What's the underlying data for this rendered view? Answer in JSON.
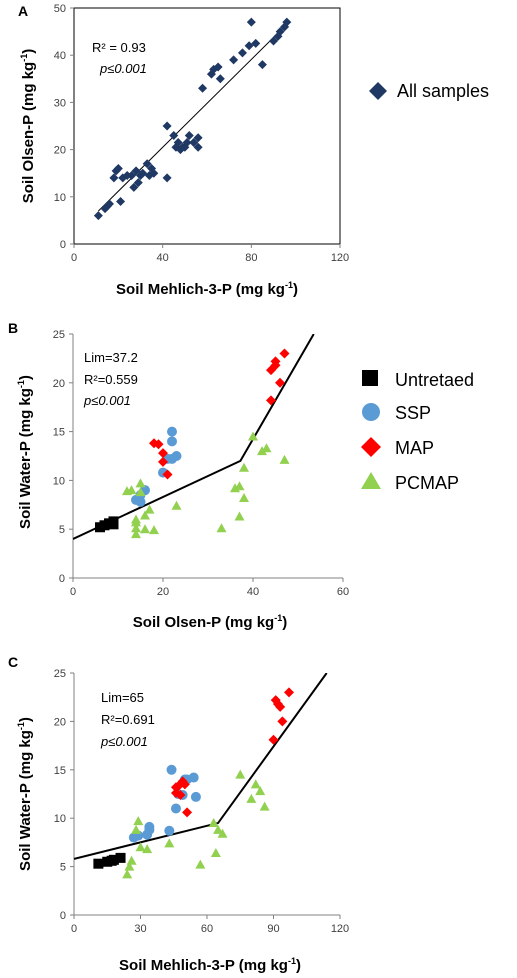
{
  "chart_data": [
    {
      "type": "scatter",
      "panel": "A",
      "xlabel": "Soil Mehlich-3-P (mg kg",
      "ylabel": "Soil Olsen-P (mg kg",
      "label_sup": "-1",
      "label_close": ")",
      "xlim": [
        0,
        120
      ],
      "ylim": [
        0,
        50
      ],
      "xticks": [
        0,
        40,
        80,
        120
      ],
      "yticks": [
        0,
        10,
        20,
        30,
        40,
        50
      ],
      "stat_r2": "R² = 0.93",
      "stat_p": "p≤0.001",
      "legend_position": "right",
      "color": "#1f3864",
      "series": [
        {
          "name": "All samples",
          "marker": "diamond",
          "points": [
            [
              11,
              6
            ],
            [
              14,
              7.5
            ],
            [
              15,
              8
            ],
            [
              16,
              8.5
            ],
            [
              18,
              14
            ],
            [
              19,
              15.5
            ],
            [
              20,
              16
            ],
            [
              21,
              9
            ],
            [
              22,
              14
            ],
            [
              24,
              14.5
            ],
            [
              26,
              14.5
            ],
            [
              27,
              12
            ],
            [
              28,
              15.5
            ],
            [
              29,
              13
            ],
            [
              30,
              14.5
            ],
            [
              31,
              15
            ],
            [
              33,
              17
            ],
            [
              34,
              14.5
            ],
            [
              35,
              16
            ],
            [
              36,
              15
            ],
            [
              42,
              14
            ],
            [
              42,
              25
            ],
            [
              45,
              23
            ],
            [
              46,
              20.5
            ],
            [
              47,
              21.5
            ],
            [
              48,
              20
            ],
            [
              49,
              20.5
            ],
            [
              50,
              20.5
            ],
            [
              51,
              21.5
            ],
            [
              52,
              23
            ],
            [
              54,
              21.5
            ],
            [
              56,
              20.5
            ],
            [
              56,
              22.5
            ],
            [
              58,
              33
            ],
            [
              62,
              36
            ],
            [
              63,
              37
            ],
            [
              65,
              37.5
            ],
            [
              66,
              35
            ],
            [
              72,
              39
            ],
            [
              76,
              40.5
            ],
            [
              79,
              42
            ],
            [
              80,
              47
            ],
            [
              82,
              42.5
            ],
            [
              85,
              38
            ],
            [
              90,
              43
            ],
            [
              92,
              44
            ],
            [
              93,
              45
            ],
            [
              95,
              46
            ],
            [
              96,
              47
            ]
          ]
        }
      ],
      "fit_line": [
        [
          11,
          7
        ],
        [
          97,
          47
        ]
      ]
    },
    {
      "type": "scatter",
      "panel": "B",
      "xlabel": "Soil Olsen-P (mg kg",
      "ylabel": "Soil Water-P (mg kg",
      "label_sup": "-1",
      "label_close": ")",
      "xlim": [
        0,
        60
      ],
      "ylim": [
        0,
        25
      ],
      "xticks": [
        0,
        20,
        40,
        60
      ],
      "yticks": [
        0,
        5,
        10,
        15,
        20,
        25
      ],
      "stat_lim": "Lim=37.2",
      "stat_r2": "R²=0.559",
      "stat_p": "p≤0.001",
      "legend_position": "right",
      "series": [
        {
          "name": "Untretaed",
          "marker": "square",
          "color": "#000000",
          "points": [
            [
              6,
              5.2
            ],
            [
              7,
              5.4
            ],
            [
              8,
              5.6
            ],
            [
              9,
              5.8
            ],
            [
              9,
              5.5
            ]
          ]
        },
        {
          "name": "SSP",
          "marker": "circle",
          "color": "#5b9bd5",
          "points": [
            [
              14,
              8
            ],
            [
              15,
              8.5
            ],
            [
              16,
              9
            ],
            [
              15,
              7.8
            ],
            [
              20,
              10.8
            ],
            [
              21,
              12.2
            ],
            [
              22,
              12.2
            ],
            [
              22,
              14
            ],
            [
              22,
              15
            ],
            [
              23,
              12.5
            ]
          ]
        },
        {
          "name": "MAP",
          "marker": "diamond",
          "color": "#ff0000",
          "points": [
            [
              18,
              13.8
            ],
            [
              19,
              13.7
            ],
            [
              20,
              12.8
            ],
            [
              20,
              11.9
            ],
            [
              21,
              10.6
            ],
            [
              44,
              18.2
            ],
            [
              44,
              21.3
            ],
            [
              45,
              21.8
            ],
            [
              45,
              22.2
            ],
            [
              46,
              20
            ],
            [
              47,
              23
            ]
          ]
        },
        {
          "name": "PCMAP",
          "marker": "triangle",
          "color": "#92d050",
          "points": [
            [
              12,
              8.9
            ],
            [
              13,
              9
            ],
            [
              14,
              4.5
            ],
            [
              14,
              5.1
            ],
            [
              14,
              5.7
            ],
            [
              14,
              6
            ],
            [
              15,
              8.8
            ],
            [
              15,
              9.7
            ],
            [
              16,
              5
            ],
            [
              16,
              6.4
            ],
            [
              17,
              7
            ],
            [
              18,
              4.9
            ],
            [
              23,
              7.4
            ],
            [
              33,
              5.1
            ],
            [
              36,
              9.2
            ],
            [
              37,
              9.4
            ],
            [
              37,
              6.3
            ],
            [
              38,
              8.2
            ],
            [
              38,
              11.3
            ],
            [
              40,
              14.5
            ],
            [
              42,
              13
            ],
            [
              43,
              13.3
            ],
            [
              47,
              12.1
            ]
          ]
        }
      ],
      "fit_line": [
        [
          0,
          4
        ],
        [
          37.2,
          12
        ],
        [
          53.5,
          25
        ]
      ]
    },
    {
      "type": "scatter",
      "panel": "C",
      "xlabel": "Soil Mehlich-3-P (mg kg",
      "ylabel": "Soil Water-P (mg kg",
      "label_sup": "-1",
      "label_close": ")",
      "xlim": [
        0,
        120
      ],
      "ylim": [
        0,
        25
      ],
      "xticks": [
        0,
        30,
        60,
        90,
        120
      ],
      "yticks": [
        0,
        5,
        10,
        15,
        20,
        25
      ],
      "stat_lim": "Lim=65",
      "stat_r2": "R²=0.691",
      "stat_p": "p≤0.001",
      "series": [
        {
          "name": "Untretaed",
          "marker": "square",
          "color": "#000000",
          "points": [
            [
              11,
              5.3
            ],
            [
              15,
              5.5
            ],
            [
              17,
              5.6
            ],
            [
              18,
              5.7
            ],
            [
              21,
              5.9
            ]
          ]
        },
        {
          "name": "SSP",
          "marker": "circle",
          "color": "#5b9bd5",
          "points": [
            [
              27,
              8
            ],
            [
              29,
              8.2
            ],
            [
              33,
              8.3
            ],
            [
              34,
              8.8
            ],
            [
              34,
              9.1
            ],
            [
              43,
              8.7
            ],
            [
              44,
              15
            ],
            [
              46,
              11
            ],
            [
              47,
              12.5
            ],
            [
              49,
              12.4
            ],
            [
              50,
              14
            ],
            [
              51,
              14
            ],
            [
              54,
              14.2
            ],
            [
              55,
              12.2
            ]
          ]
        },
        {
          "name": "MAP",
          "marker": "diamond",
          "color": "#ff0000",
          "points": [
            [
              46,
              13.2
            ],
            [
              46,
              12.6
            ],
            [
              47,
              13.3
            ],
            [
              48,
              12.4
            ],
            [
              49,
              13.8
            ],
            [
              50,
              13.5
            ],
            [
              51,
              10.6
            ],
            [
              90,
              18.1
            ],
            [
              91,
              22.2
            ],
            [
              92,
              21.8
            ],
            [
              93,
              21.5
            ],
            [
              94,
              20
            ],
            [
              97,
              23
            ]
          ]
        },
        {
          "name": "PCMAP",
          "marker": "triangle",
          "color": "#92d050",
          "points": [
            [
              24,
              4.2
            ],
            [
              25,
              5
            ],
            [
              26,
              5.6
            ],
            [
              28,
              8.8
            ],
            [
              29,
              9.7
            ],
            [
              30,
              7
            ],
            [
              33,
              6.8
            ],
            [
              43,
              7.4
            ],
            [
              57,
              5.2
            ],
            [
              63,
              9.5
            ],
            [
              64,
              6.4
            ],
            [
              65,
              8.8
            ],
            [
              67,
              8.4
            ],
            [
              75,
              14.5
            ],
            [
              80,
              12
            ],
            [
              82,
              13.5
            ],
            [
              84,
              12.8
            ],
            [
              86,
              11.2
            ]
          ]
        }
      ],
      "fit_line": [
        [
          0,
          5.8
        ],
        [
          65,
          9.5
        ],
        [
          114,
          25
        ]
      ]
    }
  ]
}
